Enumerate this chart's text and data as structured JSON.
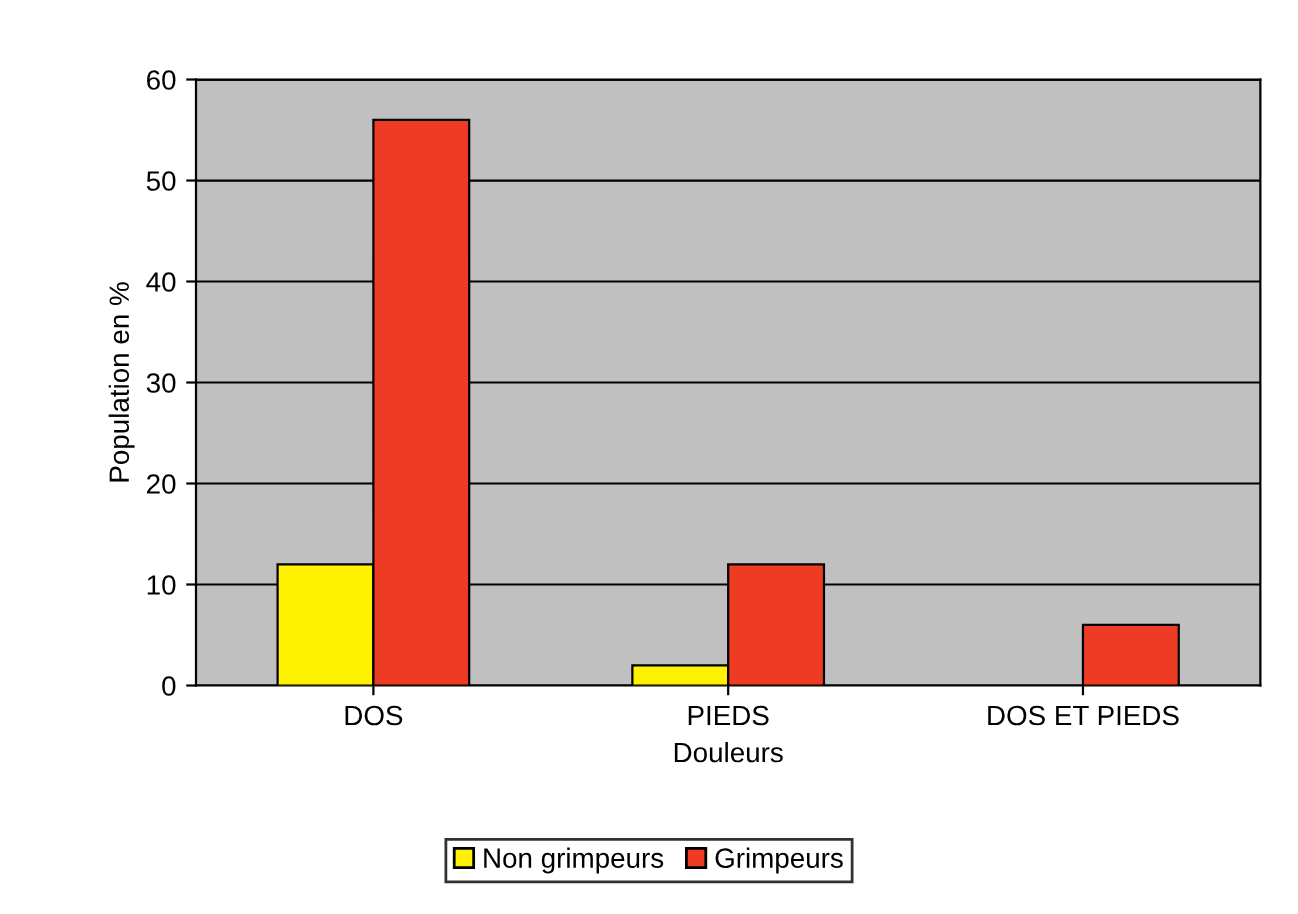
{
  "chart_data": {
    "type": "bar",
    "xlabel": "Douleurs",
    "ylabel": "Population en %",
    "categories": [
      "DOS",
      "PIEDS",
      "DOS ET PIEDS"
    ],
    "series": [
      {
        "name": "Non grimpeurs",
        "color": "#fff200",
        "values": [
          12,
          2,
          null
        ]
      },
      {
        "name": "Grimpeurs",
        "color": "#ee3b24",
        "values": [
          56,
          12,
          6
        ]
      }
    ],
    "ylim": [
      0,
      60
    ],
    "yticks": [
      0,
      10,
      20,
      30,
      40,
      50,
      60
    ],
    "grid": "y",
    "legend": "bottom"
  }
}
